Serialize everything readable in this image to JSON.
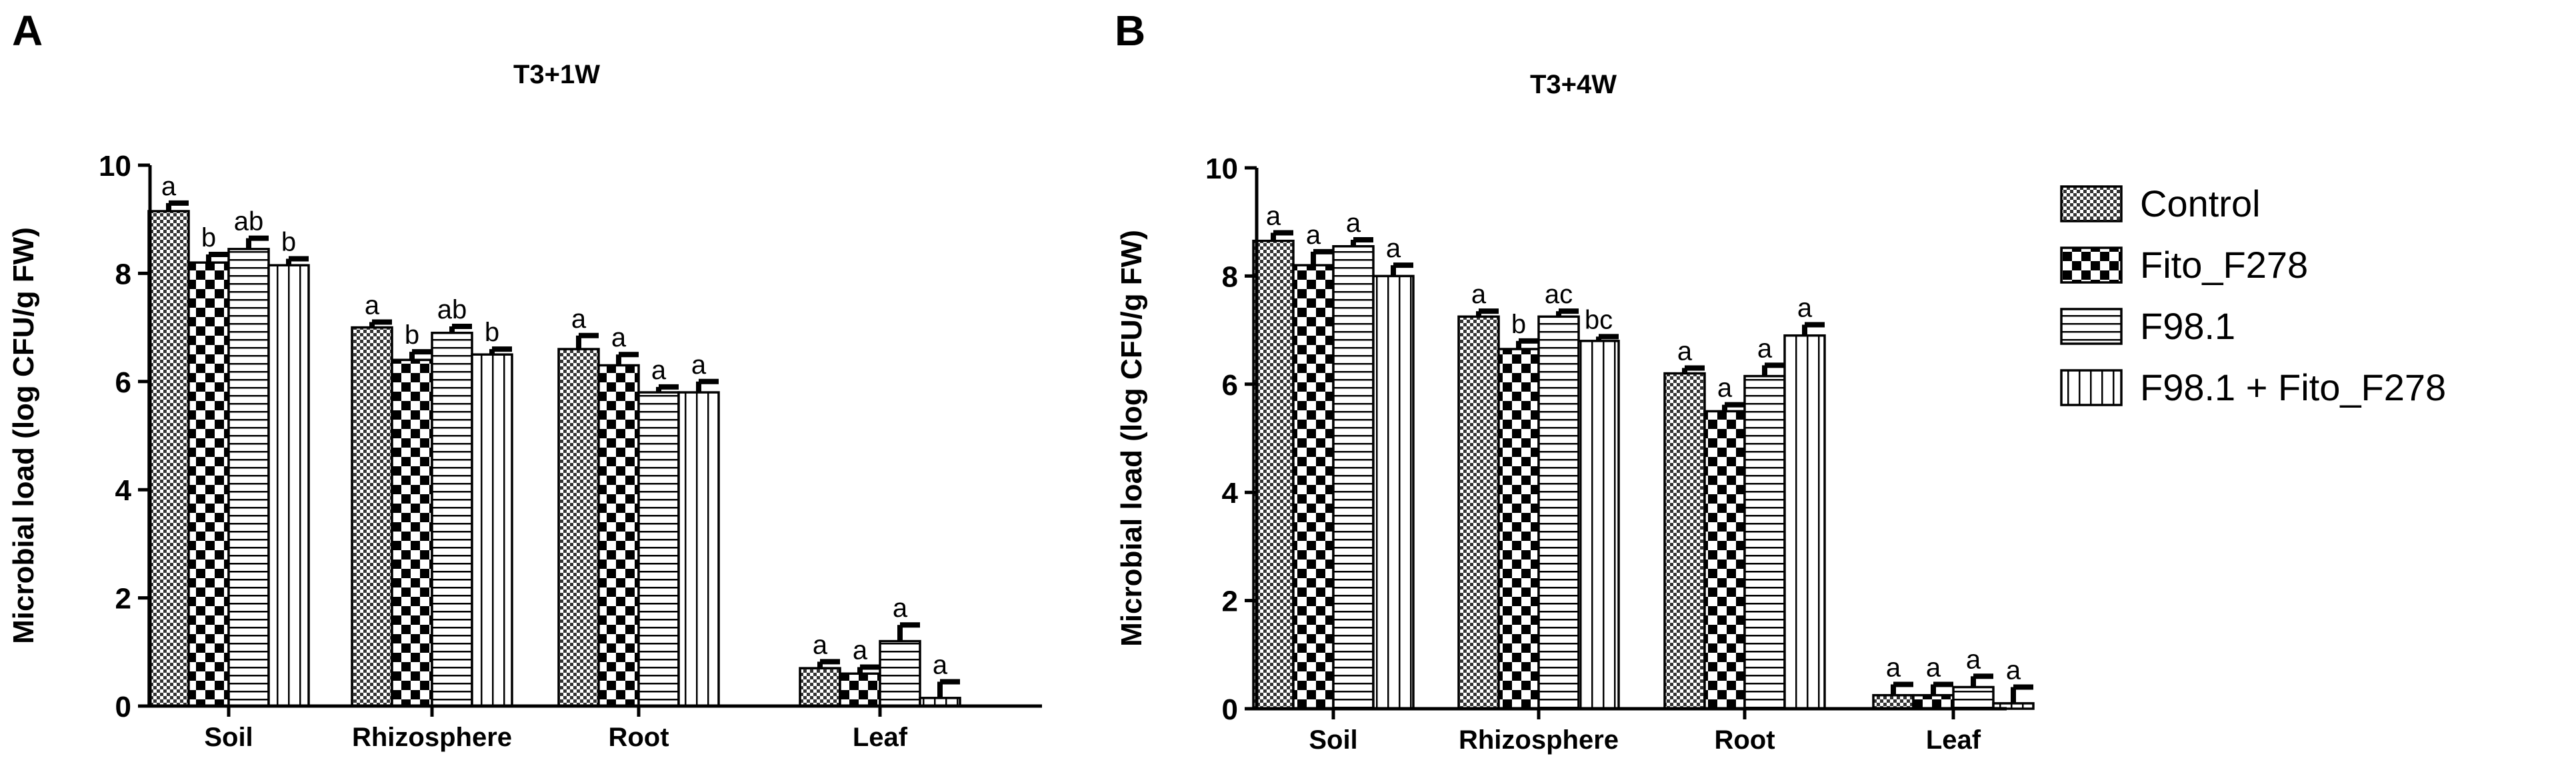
{
  "legend": {
    "entries": [
      {
        "label": "Control",
        "pattern": "fine-check"
      },
      {
        "label": "Fito_F278",
        "pattern": "coarse-check"
      },
      {
        "label": "F98.1",
        "pattern": "horizontal-lines"
      },
      {
        "label": "F98.1 + Fito_F278",
        "pattern": "vertical-lines"
      }
    ]
  },
  "chart_data": [
    {
      "panel": "A",
      "type": "bar",
      "title": "T3+1W",
      "xlabel": "",
      "ylabel": "Microbial load (log CFU/g FW)",
      "ylim": [
        0,
        10
      ],
      "yticks": [
        0,
        2,
        4,
        6,
        8,
        10
      ],
      "categories": [
        "Soil",
        "Rhizosphere",
        "Root",
        "Leaf"
      ],
      "series": [
        {
          "name": "Control",
          "values": [
            9.15,
            7.0,
            6.6,
            0.7
          ],
          "errors": [
            0.15,
            0.1,
            0.25,
            0.12
          ],
          "labels": [
            "a",
            "a",
            "a",
            "a"
          ]
        },
        {
          "name": "Fito_F278",
          "values": [
            8.2,
            6.4,
            6.3,
            0.6
          ],
          "errors": [
            0.15,
            0.15,
            0.2,
            0.12
          ],
          "labels": [
            "b",
            "b",
            "a",
            "a"
          ]
        },
        {
          "name": "F98.1",
          "values": [
            8.45,
            6.9,
            5.8,
            1.2
          ],
          "errors": [
            0.2,
            0.12,
            0.1,
            0.3
          ],
          "labels": [
            "ab",
            "ab",
            "a",
            "a"
          ]
        },
        {
          "name": "F98.1 + Fito_F278",
          "values": [
            8.15,
            6.5,
            5.8,
            0.15
          ],
          "errors": [
            0.12,
            0.1,
            0.2,
            0.3
          ],
          "labels": [
            "b",
            "b",
            "a",
            "a"
          ]
        }
      ]
    },
    {
      "panel": "B",
      "type": "bar",
      "title": "T3+4W",
      "xlabel": "",
      "ylabel": "Microbial load (log CFU/g FW)",
      "ylim": [
        0,
        10
      ],
      "yticks": [
        0,
        2,
        4,
        6,
        8,
        10
      ],
      "categories": [
        "Soil",
        "Rhizosphere",
        "Root",
        "Leaf"
      ],
      "series": [
        {
          "name": "Control",
          "values": [
            8.65,
            7.25,
            6.2,
            0.25
          ],
          "errors": [
            0.15,
            0.1,
            0.1,
            0.2
          ],
          "labels": [
            "a",
            "a",
            "a",
            "a"
          ]
        },
        {
          "name": "Fito_F278",
          "values": [
            8.2,
            6.65,
            5.5,
            0.25
          ],
          "errors": [
            0.25,
            0.15,
            0.12,
            0.2
          ],
          "labels": [
            "a",
            "b",
            "a",
            "a"
          ]
        },
        {
          "name": "F98.1",
          "values": [
            8.55,
            7.25,
            6.15,
            0.4
          ],
          "errors": [
            0.12,
            0.1,
            0.2,
            0.2
          ],
          "labels": [
            "a",
            "ac",
            "a",
            "a"
          ]
        },
        {
          "name": "F98.1 + Fito_F278",
          "values": [
            8.0,
            6.8,
            6.9,
            0.1
          ],
          "errors": [
            0.2,
            0.08,
            0.2,
            0.3
          ],
          "labels": [
            "a",
            "bc",
            "a",
            "a"
          ]
        }
      ]
    }
  ]
}
